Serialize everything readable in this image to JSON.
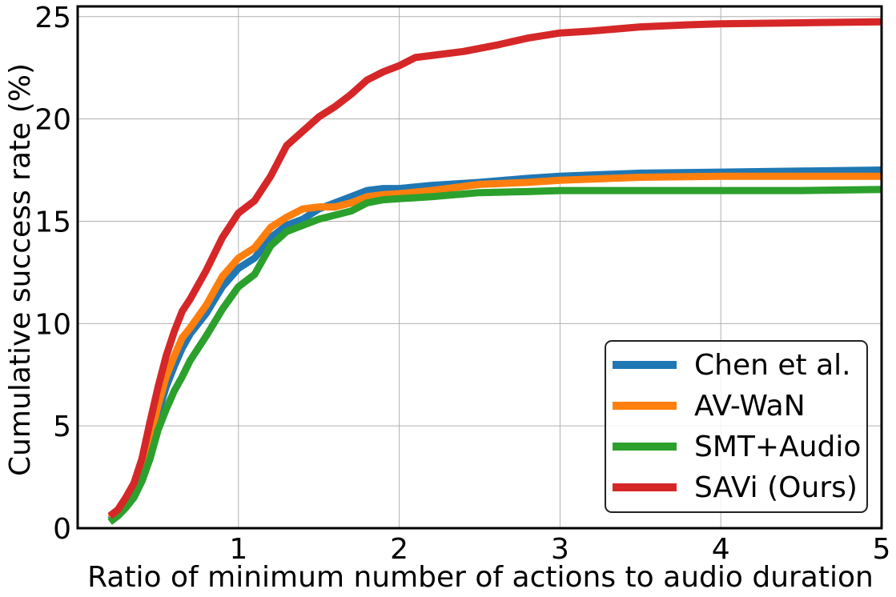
{
  "chart_data": {
    "type": "line",
    "title": "",
    "xlabel": "Ratio of minimum number of actions to audio duration",
    "ylabel": "Cumulative success rate (%)",
    "xlim": [
      0.0,
      5.0
    ],
    "ylim": [
      0.0,
      25.5
    ],
    "grid": true,
    "legend_position": "lower-right",
    "x_ticks": [
      {
        "value": 1,
        "label": "1"
      },
      {
        "value": 2,
        "label": "2"
      },
      {
        "value": 3,
        "label": "3"
      },
      {
        "value": 4,
        "label": "4"
      },
      {
        "value": 5,
        "label": "5"
      }
    ],
    "y_ticks": [
      {
        "value": 0,
        "label": "0"
      },
      {
        "value": 5,
        "label": "5"
      },
      {
        "value": 10,
        "label": "10"
      },
      {
        "value": 15,
        "label": "15"
      },
      {
        "value": 20,
        "label": "20"
      },
      {
        "value": 25,
        "label": "25"
      }
    ],
    "series": [
      {
        "name": "Chen et al.",
        "color": "#1f77b4",
        "points": [
          [
            0.2,
            0.4
          ],
          [
            0.25,
            0.7
          ],
          [
            0.3,
            1.1
          ],
          [
            0.35,
            1.7
          ],
          [
            0.4,
            2.6
          ],
          [
            0.45,
            4.0
          ],
          [
            0.5,
            5.6
          ],
          [
            0.55,
            6.9
          ],
          [
            0.6,
            7.9
          ],
          [
            0.65,
            8.8
          ],
          [
            0.7,
            9.5
          ],
          [
            0.8,
            10.5
          ],
          [
            0.9,
            11.8
          ],
          [
            1.0,
            12.7
          ],
          [
            1.1,
            13.2
          ],
          [
            1.2,
            14.2
          ],
          [
            1.3,
            14.8
          ],
          [
            1.4,
            15.1
          ],
          [
            1.5,
            15.6
          ],
          [
            1.6,
            15.9
          ],
          [
            1.7,
            16.2
          ],
          [
            1.8,
            16.5
          ],
          [
            1.9,
            16.6
          ],
          [
            2.0,
            16.6
          ],
          [
            2.2,
            16.75
          ],
          [
            2.5,
            16.9
          ],
          [
            2.8,
            17.1
          ],
          [
            3.0,
            17.2
          ],
          [
            3.5,
            17.35
          ],
          [
            4.0,
            17.4
          ],
          [
            4.5,
            17.45
          ],
          [
            5.0,
            17.5
          ]
        ]
      },
      {
        "name": "AV-WaN",
        "color": "#ff7f0e",
        "points": [
          [
            0.2,
            0.5
          ],
          [
            0.25,
            0.8
          ],
          [
            0.3,
            1.2
          ],
          [
            0.35,
            1.9
          ],
          [
            0.4,
            2.9
          ],
          [
            0.45,
            4.4
          ],
          [
            0.5,
            6.0
          ],
          [
            0.55,
            7.4
          ],
          [
            0.6,
            8.4
          ],
          [
            0.65,
            9.3
          ],
          [
            0.7,
            9.8
          ],
          [
            0.8,
            10.9
          ],
          [
            0.9,
            12.3
          ],
          [
            1.0,
            13.2
          ],
          [
            1.1,
            13.7
          ],
          [
            1.2,
            14.7
          ],
          [
            1.3,
            15.2
          ],
          [
            1.4,
            15.6
          ],
          [
            1.5,
            15.7
          ],
          [
            1.6,
            15.7
          ],
          [
            1.7,
            15.9
          ],
          [
            1.8,
            16.2
          ],
          [
            1.9,
            16.3
          ],
          [
            2.0,
            16.35
          ],
          [
            2.2,
            16.5
          ],
          [
            2.5,
            16.8
          ],
          [
            2.8,
            16.9
          ],
          [
            3.0,
            17.0
          ],
          [
            3.5,
            17.15
          ],
          [
            4.0,
            17.2
          ],
          [
            4.5,
            17.2
          ],
          [
            5.0,
            17.2
          ]
        ]
      },
      {
        "name": "SMT+Audio",
        "color": "#2ca02c",
        "points": [
          [
            0.2,
            0.3
          ],
          [
            0.25,
            0.6
          ],
          [
            0.3,
            1.0
          ],
          [
            0.35,
            1.5
          ],
          [
            0.4,
            2.3
          ],
          [
            0.45,
            3.4
          ],
          [
            0.5,
            4.8
          ],
          [
            0.55,
            5.8
          ],
          [
            0.6,
            6.7
          ],
          [
            0.65,
            7.4
          ],
          [
            0.7,
            8.2
          ],
          [
            0.8,
            9.4
          ],
          [
            0.9,
            10.7
          ],
          [
            1.0,
            11.8
          ],
          [
            1.1,
            12.4
          ],
          [
            1.2,
            13.8
          ],
          [
            1.3,
            14.5
          ],
          [
            1.4,
            14.8
          ],
          [
            1.5,
            15.1
          ],
          [
            1.6,
            15.3
          ],
          [
            1.7,
            15.5
          ],
          [
            1.8,
            15.9
          ],
          [
            1.9,
            16.05
          ],
          [
            2.0,
            16.1
          ],
          [
            2.2,
            16.2
          ],
          [
            2.5,
            16.4
          ],
          [
            2.8,
            16.45
          ],
          [
            3.0,
            16.5
          ],
          [
            3.5,
            16.5
          ],
          [
            4.0,
            16.5
          ],
          [
            4.5,
            16.5
          ],
          [
            5.0,
            16.55
          ]
        ]
      },
      {
        "name": "SAVi (Ours)",
        "color": "#d62728",
        "points": [
          [
            0.2,
            0.6
          ],
          [
            0.25,
            0.9
          ],
          [
            0.3,
            1.5
          ],
          [
            0.35,
            2.2
          ],
          [
            0.4,
            3.4
          ],
          [
            0.45,
            5.2
          ],
          [
            0.5,
            6.9
          ],
          [
            0.55,
            8.4
          ],
          [
            0.6,
            9.6
          ],
          [
            0.65,
            10.6
          ],
          [
            0.7,
            11.2
          ],
          [
            0.8,
            12.6
          ],
          [
            0.9,
            14.2
          ],
          [
            1.0,
            15.4
          ],
          [
            1.1,
            16.0
          ],
          [
            1.2,
            17.2
          ],
          [
            1.3,
            18.7
          ],
          [
            1.4,
            19.4
          ],
          [
            1.5,
            20.1
          ],
          [
            1.6,
            20.6
          ],
          [
            1.7,
            21.2
          ],
          [
            1.8,
            21.9
          ],
          [
            1.9,
            22.3
          ],
          [
            2.0,
            22.6
          ],
          [
            2.1,
            23.0
          ],
          [
            2.2,
            23.1
          ],
          [
            2.4,
            23.3
          ],
          [
            2.6,
            23.6
          ],
          [
            2.8,
            23.95
          ],
          [
            3.0,
            24.2
          ],
          [
            3.2,
            24.3
          ],
          [
            3.5,
            24.5
          ],
          [
            3.8,
            24.6
          ],
          [
            4.0,
            24.65
          ],
          [
            4.5,
            24.7
          ],
          [
            5.0,
            24.75
          ]
        ]
      }
    ]
  }
}
